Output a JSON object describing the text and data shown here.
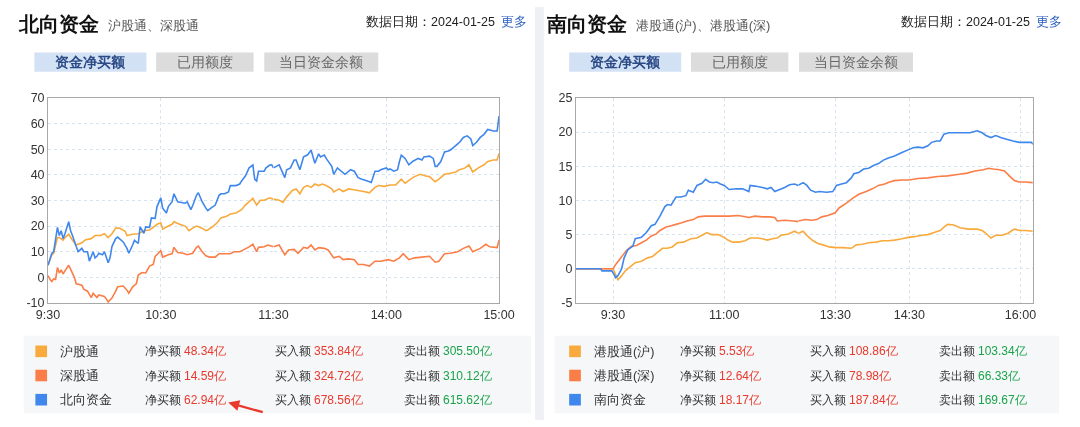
{
  "chart_data": [
    {
      "type": "line",
      "title": "北向资金",
      "subtitle": "沪股通、深股通",
      "annotations": [
        "数据日期：2024-01-25",
        "更多",
        "资金净买额",
        "已用额度",
        "当日资金余额",
        "净买额",
        "48.34亿",
        "买入额",
        "353.84亿",
        "卖出额",
        "305.50亿",
        "净买额",
        "14.59亿",
        "买入额",
        "324.72亿",
        "卖出额",
        "310.12亿",
        "净买额",
        "62.94亿",
        "买入额",
        "678.56亿",
        "卖出额",
        "615.62亿"
      ],
      "xlim": [
        "2024-01-25T09:30",
        "2024-01-25T11:30"
      ],
      "xticks": [
        {
          "value": "2024-01-25T09:30",
          "label": "9:30"
        },
        {
          "value": "2024-01-25T10:30",
          "label": "10:30"
        },
        {
          "value": "2024-01-25T11:30",
          "label": "11:30"
        }
      ],
      "ylim": [
        -10,
        70
      ],
      "yticks": [
        -10,
        0,
        10,
        20,
        30,
        40,
        50,
        60,
        70
      ],
      "grid": true,
      "legend": "bottom",
      "series": [
        {
          "name": "沪股通",
          "color": "#f8aa3c",
          "x": [
            "2024-01-25T09:30",
            "2024-01-25T09:32",
            "2024-01-25T09:33",
            "2024-01-25T09:35",
            "2024-01-25T09:36",
            "2024-01-25T09:38",
            "2024-01-25T09:39",
            "2024-01-25T09:41",
            "2024-01-25T09:43",
            "2024-01-25T09:45",
            "2024-01-25T09:48",
            "2024-01-25T09:50",
            "2024-01-25T09:53",
            "2024-01-25T09:55",
            "2024-01-25T09:58",
            "2024-01-25T10:00",
            "2024-01-25T10:02",
            "2024-01-25T10:04",
            "2024-01-25T10:06",
            "2024-01-25T10:08",
            "2024-01-25T10:11",
            "2024-01-25T10:12",
            "2024-01-25T10:15",
            "2024-01-25T10:18",
            "2024-01-25T10:21",
            "2024-01-25T10:24",
            "2024-01-25T10:26",
            "2024-01-25T10:28",
            "2024-01-25T10:30",
            "2024-01-25T10:31",
            "2024-01-25T10:34",
            "2024-01-25T10:36",
            "2024-01-25T10:37",
            "2024-01-25T10:40",
            "2024-01-25T10:43",
            "2024-01-25T10:45",
            "2024-01-25T10:47",
            "2024-01-25T10:49",
            "2024-01-25T10:52",
            "2024-01-25T10:54",
            "2024-01-25T10:55",
            "2024-01-25T10:58",
            "2024-01-25T11:00",
            "2024-01-25T11:02",
            "2024-01-25T11:05",
            "2024-01-25T11:07",
            "2024-01-25T11:10",
            "2024-01-25T11:13",
            "2024-01-25T11:15",
            "2024-01-25T11:18",
            "2024-01-25T11:19",
            "2024-01-25T11:21",
            "2024-01-25T11:23",
            "2024-01-25T11:25",
            "2024-01-25T11:28",
            "2024-01-25T11:30"
          ],
          "values": [
            4.7,
            8.8,
            9.4,
            15.5,
            15.5,
            14.5,
            15.5,
            16.8,
            14.5,
            12.6,
            13.5,
            14.7,
            15.1,
            16.3,
            16.3,
            17.0,
            15.5,
            17.0,
            19.2,
            19.2,
            18.0,
            16.3,
            16.8,
            17.0,
            18.2,
            18.5,
            19.5,
            20.7,
            21.3,
            18.8,
            20.0,
            20.7,
            21.7,
            20.7,
            20.0,
            18.2,
            19.2,
            20.0,
            19.2,
            18.2,
            18.5,
            20.0,
            21.3,
            23.2,
            23.8,
            24.7,
            25.1,
            26.4,
            28.2,
            30.1,
            30.8,
            28.2,
            30.1,
            30.1,
            31.0,
            30.5
          ]
        },
        {
          "name": "深股通",
          "color": "#fb7e48",
          "x": [
            "2024-01-25T09:30",
            "2024-01-25T09:31",
            "2024-01-25T09:32",
            "2024-01-25T09:33",
            "2024-01-25T09:34",
            "2024-01-25T09:35",
            "2024-01-25T09:36",
            "2024-01-25T09:37",
            "2024-01-25T09:38",
            "2024-01-25T09:39",
            "2024-01-25T09:41",
            "2024-01-25T09:42",
            "2024-01-25T09:44",
            "2024-01-25T09:45",
            "2024-01-25T09:48",
            "2024-01-25T09:49",
            "2024-01-25T09:51",
            "2024-01-25T09:53",
            "2024-01-25T09:54",
            "2024-01-25T09:56",
            "2024-01-25T09:57",
            "2024-01-25T10:00",
            "2024-01-25T10:01",
            "2024-01-25T10:02",
            "2024-01-25T10:04",
            "2024-01-25T10:06",
            "2024-01-25T10:07",
            "2024-01-25T10:10",
            "2024-01-25T10:12",
            "2024-01-25T10:13",
            "2024-01-25T10:15",
            "2024-01-25T10:17",
            "2024-01-25T10:18",
            "2024-01-25T10:20",
            "2024-01-25T10:22",
            "2024-01-25T10:24",
            "2024-01-25T10:26",
            "2024-01-25T10:27",
            "2024-01-25T10:30",
            "2024-01-25T10:31",
            "2024-01-25T10:34",
            "2024-01-25T10:36",
            "2024-01-25T10:37",
            "2024-01-25T10:39",
            "2024-01-25T10:42",
            "2024-01-25T10:44",
            "2024-01-25T10:47",
            "2024-01-25T10:49",
            "2024-01-25T10:50",
            "2024-01-25T10:52",
            "2024-01-25T10:54",
            "2024-01-25T10:56",
            "2024-01-25T10:59",
            "2024-01-25T11:01",
            "2024-01-25T11:04",
            "2024-01-25T11:07",
            "2024-01-25T11:09",
            "2024-01-25T11:12",
            "2024-01-25T11:14",
            "2024-01-25T11:17",
            "2024-01-25T11:19",
            "2024-01-25T11:21",
            "2024-01-25T11:22",
            "2024-01-25T11:25",
            "2024-01-25T11:27",
            "2024-01-25T11:30"
          ],
          "values": [
            0.7,
            -0.8,
            -1.6,
            -0.6,
            -0.8,
            3.8,
            1.7,
            2.9,
            1.3,
            2.5,
            4.7,
            3.2,
            0.0,
            -2.5,
            -3.1,
            -4.6,
            -5.4,
            -7.9,
            -6.2,
            -7.9,
            -6.9,
            -7.5,
            -8.4,
            -9.6,
            -8.1,
            -5.4,
            -3.7,
            -3.4,
            -5.0,
            -6.2,
            -3.7,
            -2.5,
            0.9,
            1.9,
            1.7,
            4.4,
            5.0,
            8.2,
            10.4,
            7.9,
            8.8,
            9.2,
            11.7,
            9.7,
            9.4,
            8.8,
            9.4,
            11.7,
            12.2,
            10.0,
            8.4,
            7.9,
            7.9,
            9.2,
            9.2,
            9.2,
            10.0,
            10.0,
            10.7,
            11.9,
            12.9,
            10.0,
            11.7,
            11.9,
            12.6,
            11.9
          ]
        },
        {
          "name": "北向资金",
          "color": "#3f87ec",
          "x": [
            "2024-01-25T09:30",
            "2024-01-25T09:32",
            "2024-01-25T09:33",
            "2024-01-25T09:35",
            "2024-01-25T09:36",
            "2024-01-25T09:37",
            "2024-01-25T09:38",
            "2024-01-25T09:39",
            "2024-01-25T09:41",
            "2024-01-25T09:42",
            "2024-01-25T09:43",
            "2024-01-25T09:45",
            "2024-01-25T09:46",
            "2024-01-25T09:48",
            "2024-01-25T09:49",
            "2024-01-25T09:51",
            "2024-01-25T09:52",
            "2024-01-25T09:54",
            "2024-01-25T09:55",
            "2024-01-25T09:56",
            "2024-01-25T09:57",
            "2024-01-25T09:59",
            "2024-01-25T10:00",
            "2024-01-25T10:02",
            "2024-01-25T10:03",
            "2024-01-25T10:04",
            "2024-01-25T10:06",
            "2024-01-25T10:07",
            "2024-01-25T10:10",
            "2024-01-25T10:12",
            "2024-01-25T10:13",
            "2024-01-25T10:15",
            "2024-01-25T10:16",
            "2024-01-25T10:18",
            "2024-01-25T10:19",
            "2024-01-25T10:21",
            "2024-01-25T10:22",
            "2024-01-25T10:24",
            "2024-01-25T10:25",
            "2024-01-25T10:27",
            "2024-01-25T10:28",
            "2024-01-25T10:30",
            "2024-01-25T10:31",
            "2024-01-25T10:33",
            "2024-01-25T10:34",
            "2024-01-25T10:36",
            "2024-01-25T10:37",
            "2024-01-25T10:39",
            "2024-01-25T10:41",
            "2024-01-25T10:43",
            "2024-01-25T10:44",
            "2024-01-25T10:46",
            "2024-01-25T10:47",
            "2024-01-25T10:49",
            "2024-01-25T10:50",
            "2024-01-25T10:52",
            "2024-01-25T10:54",
            "2024-01-25T10:55",
            "2024-01-25T10:57",
            "2024-01-25T10:59",
            "2024-01-25T11:01",
            "2024-01-25T11:02",
            "2024-01-25T11:04",
            "2024-01-25T11:06",
            "2024-01-25T11:07",
            "2024-01-25T11:10",
            "2024-01-25T11:12",
            "2024-01-25T11:13",
            "2024-01-25T11:15",
            "2024-01-25T11:17",
            "2024-01-25T11:19",
            "2024-01-25T11:20",
            "2024-01-25T11:21",
            "2024-01-25T11:22",
            "2024-01-25T11:25",
            "2024-01-25T11:26",
            "2024-01-25T11:28",
            "2024-01-25T11:29",
            "2024-01-25T11:30"
          ],
          "values": [
            4.7,
            9.4,
            10.0,
            19.5,
            16.3,
            18.2,
            15.1,
            17.0,
            21.7,
            18.2,
            16.3,
            12.0,
            10.0,
            11.3,
            10.0,
            10.0,
            6.3,
            10.0,
            7.6,
            8.2,
            9.4,
            8.8,
            10.0,
            5.7,
            7.6,
            12.0,
            15.1,
            15.7,
            13.8,
            11.3,
            9.4,
            12.6,
            14.4,
            13.2,
            19.7,
            17.2,
            19.7,
            19.5,
            23.2,
            23.0,
            27.6,
            31.0,
            27.0,
            25.1,
            27.6,
            29.5,
            32.6,
            29.5,
            29.2,
            28.9,
            29.5,
            26.4,
            28.0,
            32.0,
            33.0,
            29.5,
            27.0,
            26.0,
            27.2,
            28.2,
            32.0,
            32.6,
            32.6,
            33.3,
            35.8,
            35.8,
            36.4,
            37.6,
            39.5,
            42.7,
            43.8,
            38.2,
            37.6,
            41.4,
            41.4,
            42.7,
            43.8,
            43.9,
            42.7
          ]
        }
      ]
    },
    {
      "type": "line",
      "xlim": [
        "2024-01-25T13:00",
        "2024-01-25T15:00"
      ],
      "xticks": [
        {
          "value": "2024-01-25T14:00",
          "label": "14:00"
        },
        {
          "value": "2024-01-25T15:00",
          "label": "15:00"
        }
      ],
      "ylim": [
        -10,
        70
      ],
      "yticks": [
        -10,
        0,
        10,
        20,
        30,
        40,
        50,
        60,
        70
      ],
      "tick_labels": "x",
      "grid": true,
      "series": [
        {
          "color": "#f8aa3c",
          "x": [
            "2024-01-25T13:00",
            "2024-01-25T13:03",
            "2024-01-25T13:05",
            "2024-01-25T13:07",
            "2024-01-25T13:10",
            "2024-01-25T13:12",
            "2024-01-25T13:14",
            "2024-01-25T13:16",
            "2024-01-25T13:18",
            "2024-01-25T13:20",
            "2024-01-25T13:22",
            "2024-01-25T13:24",
            "2024-01-25T13:26",
            "2024-01-25T13:28",
            "2024-01-25T13:31",
            "2024-01-25T13:32",
            "2024-01-25T13:35",
            "2024-01-25T13:37",
            "2024-01-25T13:40",
            "2024-01-25T13:42",
            "2024-01-25T13:45",
            "2024-01-25T13:48",
            "2024-01-25T13:51",
            "2024-01-25T13:54",
            "2024-01-25T13:56",
            "2024-01-25T13:59",
            "2024-01-25T14:02",
            "2024-01-25T14:05",
            "2024-01-25T14:08",
            "2024-01-25T14:10",
            "2024-01-25T14:13",
            "2024-01-25T14:15",
            "2024-01-25T14:18",
            "2024-01-25T14:21",
            "2024-01-25T14:23",
            "2024-01-25T14:26",
            "2024-01-25T14:28",
            "2024-01-25T14:31",
            "2024-01-25T14:34",
            "2024-01-25T14:37",
            "2024-01-25T14:39",
            "2024-01-25T14:42",
            "2024-01-25T14:44",
            "2024-01-25T14:46",
            "2024-01-25T14:49",
            "2024-01-25T14:52",
            "2024-01-25T14:54",
            "2024-01-25T14:57",
            "2024-01-25T14:59",
            "2024-01-25T15:00"
          ],
          "values": [
            30.5,
            30.1,
            29.2,
            31.4,
            33.9,
            34.5,
            32.6,
            35.1,
            35.8,
            35.1,
            36.4,
            35.8,
            36.4,
            35.8,
            34.5,
            33.3,
            34.5,
            33.5,
            34.5,
            34.3,
            33.9,
            33.5,
            33.0,
            35.1,
            35.8,
            35.5,
            36.0,
            36.0,
            38.3,
            36.7,
            38.3,
            39.3,
            40.2,
            39.5,
            39.3,
            37.3,
            38.3,
            40.2,
            40.6,
            41.1,
            42.0,
            42.7,
            43.9,
            41.1,
            42.7,
            43.9,
            45.2,
            45.8,
            45.8,
            48.3
          ]
        },
        {
          "color": "#fb7e48",
          "x": [
            "2024-01-25T13:00",
            "2024-01-25T13:03",
            "2024-01-25T13:06",
            "2024-01-25T13:08",
            "2024-01-25T13:11",
            "2024-01-25T13:13",
            "2024-01-25T13:16",
            "2024-01-25T13:18",
            "2024-01-25T13:20",
            "2024-01-25T13:22",
            "2024-01-25T13:24",
            "2024-01-25T13:27",
            "2024-01-25T13:29",
            "2024-01-25T13:32",
            "2024-01-25T13:35",
            "2024-01-25T13:37",
            "2024-01-25T13:40",
            "2024-01-25T13:43",
            "2024-01-25T13:45",
            "2024-01-25T13:48",
            "2024-01-25T13:51",
            "2024-01-25T13:54",
            "2024-01-25T13:57",
            "2024-01-25T14:01",
            "2024-01-25T14:04",
            "2024-01-25T14:07",
            "2024-01-25T14:09",
            "2024-01-25T14:12",
            "2024-01-25T14:15",
            "2024-01-25T14:19",
            "2024-01-25T14:23",
            "2024-01-25T14:26",
            "2024-01-25T14:28",
            "2024-01-25T14:31",
            "2024-01-25T14:34",
            "2024-01-25T14:38",
            "2024-01-25T14:41",
            "2024-01-25T14:44",
            "2024-01-25T14:46",
            "2024-01-25T14:50",
            "2024-01-25T14:53",
            "2024-01-25T14:55",
            "2024-01-25T14:59",
            "2024-01-25T15:00"
          ],
          "values": [
            11.9,
            12.6,
            8.8,
            10.7,
            10.9,
            9.4,
            11.7,
            11.3,
            12.6,
            10.7,
            11.6,
            11.3,
            10.7,
            7.6,
            8.2,
            6.9,
            7.2,
            6.9,
            5.0,
            5.0,
            4.4,
            6.3,
            6.3,
            6.9,
            6.3,
            7.6,
            9.2,
            6.9,
            7.6,
            7.9,
            8.2,
            5.9,
            6.3,
            9.2,
            9.4,
            10.0,
            11.3,
            12.2,
            10.0,
            11.3,
            12.9,
            11.9,
            11.6,
            14.6
          ]
        },
        {
          "color": "#3f87ec",
          "x": [
            "2024-01-25T13:00",
            "2024-01-25T13:03",
            "2024-01-25T13:06",
            "2024-01-25T13:07",
            "2024-01-25T13:09",
            "2024-01-25T13:11",
            "2024-01-25T13:12",
            "2024-01-25T13:14",
            "2024-01-25T13:16",
            "2024-01-25T13:18",
            "2024-01-25T13:20",
            "2024-01-25T13:22",
            "2024-01-25T13:24",
            "2024-01-25T13:25",
            "2024-01-25T13:27",
            "2024-01-25T13:28",
            "2024-01-25T13:31",
            "2024-01-25T13:32",
            "2024-01-25T13:34",
            "2024-01-25T13:36",
            "2024-01-25T13:38",
            "2024-01-25T13:41",
            "2024-01-25T13:43",
            "2024-01-25T13:45",
            "2024-01-25T13:47",
            "2024-01-25T13:50",
            "2024-01-25T13:52",
            "2024-01-25T13:54",
            "2024-01-25T13:56",
            "2024-01-25T13:57",
            "2024-01-25T14:00",
            "2024-01-25T14:01",
            "2024-01-25T14:02",
            "2024-01-25T14:04",
            "2024-01-25T14:06",
            "2024-01-25T14:07",
            "2024-01-25T14:08",
            "2024-01-25T14:10",
            "2024-01-25T14:12",
            "2024-01-25T14:14",
            "2024-01-25T14:17",
            "2024-01-25T14:19",
            "2024-01-25T14:20",
            "2024-01-25T14:23",
            "2024-01-25T14:25",
            "2024-01-25T14:26",
            "2024-01-25T14:27",
            "2024-01-25T14:29",
            "2024-01-25T14:31",
            "2024-01-25T14:33",
            "2024-01-25T14:34",
            "2024-01-25T14:36",
            "2024-01-25T14:38",
            "2024-01-25T14:39",
            "2024-01-25T14:41",
            "2024-01-25T14:43",
            "2024-01-25T14:45",
            "2024-01-25T14:46",
            "2024-01-25T14:48",
            "2024-01-25T14:50",
            "2024-01-25T14:52",
            "2024-01-25T14:54",
            "2024-01-25T14:57",
            "2024-01-25T14:59",
            "2024-01-25T15:00"
          ],
          "values": [
            42.7,
            43.9,
            38.9,
            42.0,
            42.7,
            45.8,
            45.8,
            42.0,
            47.0,
            47.7,
            49.6,
            44.5,
            48.2,
            47.0,
            47.7,
            46.4,
            43.3,
            40.2,
            42.7,
            41.4,
            40.2,
            42.0,
            41.4,
            38.9,
            38.3,
            37.6,
            37.0,
            41.4,
            41.4,
            42.0,
            42.7,
            42.0,
            42.3,
            41.4,
            42.0,
            45.2,
            47.7,
            46.4,
            43.9,
            45.2,
            46.4,
            45.8,
            47.0,
            47.3,
            46.4,
            43.3,
            43.3,
            45.2,
            48.9,
            49.3,
            49.6,
            50.8,
            52.1,
            52.7,
            54.6,
            55.2,
            54.0,
            51.4,
            52.7,
            54.6,
            55.8,
            57.7,
            57.1,
            57.1,
            62.9
          ]
        }
      ]
    },
    {
      "type": "line",
      "title": "南向资金",
      "subtitle": "港股通(沪)、港股通(深)",
      "annotations": [
        "数据日期：2024-01-25",
        "更多",
        "资金净买额",
        "已用额度",
        "当日资金余额",
        "净买额",
        "5.53亿",
        "买入额",
        "108.86亿",
        "卖出额",
        "103.34亿",
        "净买额",
        "12.64亿",
        "买入额",
        "78.98亿",
        "卖出额",
        "66.33亿",
        "净买额",
        "18.17亿",
        "买入额",
        "187.84亿",
        "卖出额",
        "169.67亿"
      ],
      "xlim": [
        "2024-01-25T09:00",
        "2024-01-25T12:00"
      ],
      "xticks": [
        {
          "value": "2024-01-25T09:30",
          "label": "9:30"
        },
        {
          "value": "2024-01-25T11:00",
          "label": "11:00"
        }
      ],
      "ylim": [
        -5,
        25
      ],
      "yticks": [
        -5,
        0,
        5,
        10,
        15,
        20,
        25
      ],
      "grid": true,
      "legend": "bottom",
      "series": [
        {
          "name": "港股通(沪)",
          "color": "#f8aa3c",
          "x": [
            "2024-01-25T09:00",
            "2024-01-25T09:30",
            "2024-01-25T09:32",
            "2024-01-25T09:34",
            "2024-01-25T09:37",
            "2024-01-25T09:40",
            "2024-01-25T09:44",
            "2024-01-25T09:48",
            "2024-01-25T09:53",
            "2024-01-25T09:58",
            "2024-01-25T10:02",
            "2024-01-25T10:06",
            "2024-01-25T10:10",
            "2024-01-25T10:14",
            "2024-01-25T10:18",
            "2024-01-25T10:22",
            "2024-01-25T10:27",
            "2024-01-25T10:33",
            "2024-01-25T10:38",
            "2024-01-25T10:42",
            "2024-01-25T10:46",
            "2024-01-25T10:50",
            "2024-01-25T10:55",
            "2024-01-25T11:00",
            "2024-01-25T11:03",
            "2024-01-25T11:07",
            "2024-01-25T11:12",
            "2024-01-25T11:17",
            "2024-01-25T11:21",
            "2024-01-25T11:27",
            "2024-01-25T11:31",
            "2024-01-25T11:35",
            "2024-01-25T11:39",
            "2024-01-25T11:43",
            "2024-01-25T11:46",
            "2024-01-25T11:52",
            "2024-01-25T11:57",
            "2024-01-25T12:00"
          ],
          "values": [
            0,
            0,
            -0.8,
            -1.6,
            -1.0,
            -0.3,
            0.3,
            0.9,
            1.1,
            1.6,
            1.8,
            2.4,
            3.0,
            3.0,
            3.2,
            3.8,
            3.9,
            4.4,
            4.5,
            4.9,
            5.3,
            5.0,
            5.0,
            4.6,
            4.2,
            3.9,
            3.9,
            4.1,
            4.5,
            4.5,
            4.4,
            4.2,
            4.4,
            4.5,
            4.9,
            5.1,
            5.5,
            5.2
          ]
        },
        {
          "name": "港股通(深)",
          "color": "#fb7e48",
          "x": [
            "2024-01-25T09:00",
            "2024-01-25T09:30",
            "2024-01-25T09:32",
            "2024-01-25T09:35",
            "2024-01-25T09:38",
            "2024-01-25T09:41",
            "2024-01-25T09:45",
            "2024-01-25T09:49",
            "2024-01-25T09:53",
            "2024-01-25T09:57",
            "2024-01-25T10:01",
            "2024-01-25T10:05",
            "2024-01-25T10:08",
            "2024-01-25T10:13",
            "2024-01-25T10:17",
            "2024-01-25T10:21",
            "2024-01-25T10:25",
            "2024-01-25T10:30",
            "2024-01-25T10:35",
            "2024-01-25T10:39",
            "2024-01-25T10:44",
            "2024-01-25T10:51",
            "2024-01-25T10:58",
            "2024-01-25T11:04",
            "2024-01-25T11:11",
            "2024-01-25T11:15",
            "2024-01-25T11:20",
            "2024-01-25T11:25",
            "2024-01-25T11:31",
            "2024-01-25T11:37",
            "2024-01-25T11:41",
            "2024-01-25T11:43",
            "2024-01-25T11:49",
            "2024-01-25T11:56",
            "2024-01-25T12:00"
          ],
          "values": [
            0,
            0,
            0.6,
            1.3,
            2.0,
            2.7,
            3.3,
            3.4,
            3.8,
            4.2,
            4.8,
            5.1,
            5.6,
            6.1,
            6.3,
            6.5,
            6.7,
            7.0,
            7.2,
            7.6,
            7.7,
            7.7,
            7.7,
            7.7,
            7.8,
            7.7,
            7.5,
            7.7,
            7.6,
            7.6,
            7.5,
            7.0,
            7.1,
            7.0,
            6.9
          ]
        },
        {
          "name": "南向资金",
          "color": "#3f87ec",
          "x": [
            "2024-01-25T09:00",
            "2024-01-25T09:20",
            "2024-01-25T09:21",
            "2024-01-25T09:29",
            "2024-01-25T09:31",
            "2024-01-25T09:32",
            "2024-01-25T09:34",
            "2024-01-25T09:37",
            "2024-01-25T09:39",
            "2024-01-25T09:42",
            "2024-01-25T09:46",
            "2024-01-25T09:48",
            "2024-01-25T09:53",
            "2024-01-25T09:57",
            "2024-01-25T10:01",
            "2024-01-25T10:04",
            "2024-01-25T10:08",
            "2024-01-25T10:12",
            "2024-01-25T10:14",
            "2024-01-25T10:17",
            "2024-01-25T10:21",
            "2024-01-25T10:25",
            "2024-01-25T10:29",
            "2024-01-25T10:31",
            "2024-01-25T10:35",
            "2024-01-25T10:38",
            "2024-01-25T10:42",
            "2024-01-25T10:45",
            "2024-01-25T10:48",
            "2024-01-25T10:51",
            "2024-01-25T10:54",
            "2024-01-25T10:57",
            "2024-01-25T11:00",
            "2024-01-25T11:04",
            "2024-01-25T11:10",
            "2024-01-25T11:15",
            "2024-01-25T11:20",
            "2024-01-25T11:21",
            "2024-01-25T11:25",
            "2024-01-25T11:31",
            "2024-01-25T11:35",
            "2024-01-25T11:38",
            "2024-01-25T11:41",
            "2024-01-25T11:45",
            "2024-01-25T11:49",
            "2024-01-25T11:53",
            "2024-01-25T11:57",
            "2024-01-25T12:00"
          ],
          "values": [
            0,
            0,
            -0.3,
            -0.3,
            -0.9,
            -1.3,
            -1.0,
            0.0,
            1.6,
            2.8,
            3.3,
            4.4,
            4.6,
            5.3,
            6.3,
            6.5,
            7.7,
            9.1,
            9.4,
            9.3,
            10.5,
            10.5,
            10.7,
            11.5,
            11.2,
            12.2,
            12.5,
            13.1,
            12.7,
            12.6,
            12.7,
            12.4,
            12.2,
            11.6,
            11.7,
            11.7,
            11.3,
            12.2,
            12.1,
            11.9,
            11.7,
            11.9,
            11.3,
            11.6,
            11.9,
            12.3,
            12.4,
            12.2
          ]
        }
      ]
    },
    {
      "type": "line",
      "xlim": [
        "2024-01-25T13:00",
        "2024-01-25T16:10"
      ],
      "xticks": [
        {
          "value": "2024-01-25T13:30",
          "label": "13:30"
        },
        {
          "value": "2024-01-25T14:30",
          "label": "14:30"
        },
        {
          "value": "2024-01-25T16:00",
          "label": "16:00"
        }
      ],
      "ylim": [
        -5,
        25
      ],
      "yticks": [
        -5,
        0,
        5,
        10,
        15,
        20,
        25
      ],
      "tick_labels": "x",
      "grid": true,
      "series": [
        {
          "color": "#f8aa3c",
          "x": [
            "2024-01-25T13:00",
            "2024-01-25T13:04",
            "2024-01-25T13:08",
            "2024-01-25T13:12",
            "2024-01-25T13:16",
            "2024-01-25T13:20",
            "2024-01-25T13:25",
            "2024-01-25T13:31",
            "2024-01-25T13:36",
            "2024-01-25T13:43",
            "2024-01-25T13:47",
            "2024-01-25T13:52",
            "2024-01-25T13:57",
            "2024-01-25T14:03",
            "2024-01-25T14:08",
            "2024-01-25T14:13",
            "2024-01-25T14:18",
            "2024-01-25T14:24",
            "2024-01-25T14:29",
            "2024-01-25T14:34",
            "2024-01-25T14:40",
            "2024-01-25T14:45",
            "2024-01-25T14:50",
            "2024-01-25T14:55",
            "2024-01-25T14:58",
            "2024-01-25T15:01",
            "2024-01-25T15:06",
            "2024-01-25T15:11",
            "2024-01-25T15:18",
            "2024-01-25T15:25",
            "2024-01-25T15:29",
            "2024-01-25T15:32",
            "2024-01-25T15:36",
            "2024-01-25T15:40",
            "2024-01-25T15:45",
            "2024-01-25T15:50",
            "2024-01-25T15:54",
            "2024-01-25T15:56",
            "2024-01-25T15:59",
            "2024-01-25T16:04",
            "2024-01-25T16:10"
          ],
          "values": [
            5.2,
            5.5,
            4.7,
            4.1,
            3.7,
            3.5,
            3.2,
            3.1,
            3.1,
            3.0,
            3.5,
            3.6,
            3.8,
            3.9,
            4.1,
            4.1,
            4.2,
            4.4,
            4.6,
            4.7,
            4.9,
            5.0,
            5.3,
            5.6,
            6.1,
            6.5,
            6.4,
            6.0,
            5.8,
            5.8,
            5.6,
            5.2,
            4.5,
            4.9,
            4.9,
            5.2,
            5.7,
            5.8,
            5.6,
            5.6,
            5.5
          ]
        },
        {
          "color": "#fb7e48",
          "x": [
            "2024-01-25T13:00",
            "2024-01-25T13:06",
            "2024-01-25T13:11",
            "2024-01-25T13:15",
            "2024-01-25T13:19",
            "2024-01-25T13:24",
            "2024-01-25T13:30",
            "2024-01-25T13:33",
            "2024-01-25T13:39",
            "2024-01-25T13:44",
            "2024-01-25T13:49",
            "2024-01-25T13:55",
            "2024-01-25T14:00",
            "2024-01-25T14:05",
            "2024-01-25T14:10",
            "2024-01-25T14:14",
            "2024-01-25T14:18",
            "2024-01-25T14:24",
            "2024-01-25T14:30",
            "2024-01-25T14:37",
            "2024-01-25T14:45",
            "2024-01-25T14:53",
            "2024-01-25T15:01",
            "2024-01-25T15:09",
            "2024-01-25T15:17",
            "2024-01-25T15:23",
            "2024-01-25T15:30",
            "2024-01-25T15:34",
            "2024-01-25T15:38",
            "2024-01-25T15:43",
            "2024-01-25T15:47",
            "2024-01-25T15:51",
            "2024-01-25T15:55",
            "2024-01-25T15:59",
            "2024-01-25T16:04",
            "2024-01-25T16:10"
          ],
          "values": [
            7.0,
            7.2,
            7.1,
            7.2,
            7.6,
            7.8,
            8.2,
            8.9,
            9.6,
            10.3,
            10.9,
            11.3,
            11.7,
            12.2,
            12.4,
            12.7,
            12.9,
            13.0,
            13.0,
            13.2,
            13.3,
            13.5,
            13.6,
            13.8,
            14.0,
            14.3,
            14.5,
            14.7,
            14.6,
            14.5,
            14.3,
            13.6,
            12.9,
            12.7,
            12.7,
            12.6
          ]
        },
        {
          "color": "#3f87ec",
          "x": [
            "2024-01-25T13:00",
            "2024-01-25T13:04",
            "2024-01-25T13:07",
            "2024-01-25T13:10",
            "2024-01-25T13:14",
            "2024-01-25T13:17",
            "2024-01-25T13:23",
            "2024-01-25T13:28",
            "2024-01-25T13:31",
            "2024-01-25T13:35",
            "2024-01-25T13:39",
            "2024-01-25T13:43",
            "2024-01-25T13:45",
            "2024-01-25T13:49",
            "2024-01-25T13:53",
            "2024-01-25T13:57",
            "2024-01-25T14:01",
            "2024-01-25T14:05",
            "2024-01-25T14:09",
            "2024-01-25T14:13",
            "2024-01-25T14:18",
            "2024-01-25T14:24",
            "2024-01-25T14:29",
            "2024-01-25T14:33",
            "2024-01-25T14:37",
            "2024-01-25T14:41",
            "2024-01-25T14:45",
            "2024-01-25T14:48",
            "2024-01-25T14:52",
            "2024-01-25T14:55",
            "2024-01-25T14:58",
            "2024-01-25T15:02",
            "2024-01-25T15:11",
            "2024-01-25T15:19",
            "2024-01-25T15:25",
            "2024-01-25T15:29",
            "2024-01-25T15:32",
            "2024-01-25T15:36",
            "2024-01-25T15:40",
            "2024-01-25T15:44",
            "2024-01-25T15:48",
            "2024-01-25T15:54",
            "2024-01-25T15:59",
            "2024-01-25T16:04",
            "2024-01-25T16:09",
            "2024-01-25T16:10"
          ],
          "values": [
            12.2,
            12.6,
            12.2,
            11.5,
            11.2,
            11.3,
            11.2,
            11.3,
            12.2,
            12.4,
            12.6,
            13.3,
            13.9,
            14.1,
            14.6,
            14.7,
            15.1,
            15.4,
            15.9,
            16.2,
            16.5,
            17.0,
            17.4,
            17.7,
            17.8,
            17.7,
            18.0,
            18.5,
            18.7,
            18.7,
            19.7,
            19.9,
            19.9,
            19.9,
            20.2,
            19.9,
            19.5,
            19.2,
            19.5,
            19.2,
            19.0,
            18.7,
            18.5,
            18.5,
            18.5,
            18.2
          ]
        }
      ]
    }
  ]
}
